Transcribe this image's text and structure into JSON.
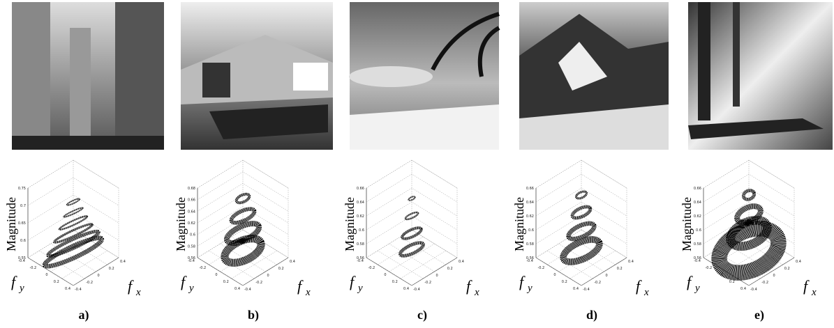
{
  "panels": [
    {
      "label": "a)",
      "z_label": "Magnitude",
      "x_label": "f",
      "x_sub": "x",
      "y_label": "f",
      "y_sub": "y",
      "z_ticks": [
        0.55,
        0.6,
        0.65,
        0.7,
        0.75
      ],
      "x_ticks": [
        -0.4,
        -0.2,
        0,
        0.2,
        0.4
      ],
      "y_ticks": [
        -0.4,
        -0.2,
        0,
        0.2,
        0.4
      ]
    },
    {
      "label": "b)",
      "z_label": "Magnitude",
      "x_label": "f",
      "x_sub": "x",
      "y_label": "f",
      "y_sub": "y",
      "z_ticks": [
        0.56,
        0.58,
        0.6,
        0.62,
        0.64,
        0.66,
        0.68
      ],
      "x_ticks": [
        -0.4,
        -0.2,
        0,
        0.2,
        0.4
      ],
      "y_ticks": [
        -0.4,
        -0.2,
        0,
        0.2,
        0.4
      ]
    },
    {
      "label": "c)",
      "z_label": "Magnitude",
      "x_label": "f",
      "x_sub": "x",
      "y_label": "f",
      "y_sub": "y",
      "z_ticks": [
        0.56,
        0.58,
        0.6,
        0.62,
        0.64,
        0.66
      ],
      "x_ticks": [
        -0.4,
        -0.2,
        0,
        0.2,
        0.4
      ],
      "y_ticks": [
        -0.4,
        -0.2,
        0,
        0.2,
        0.4
      ]
    },
    {
      "label": "d)",
      "z_label": "Magnitude",
      "x_label": "f",
      "x_sub": "x",
      "y_label": "f",
      "y_sub": "y",
      "z_ticks": [
        0.56,
        0.58,
        0.6,
        0.62,
        0.64,
        0.66
      ],
      "x_ticks": [
        -0.4,
        -0.2,
        0,
        0.2,
        0.4
      ],
      "y_ticks": [
        -0.4,
        -0.2,
        0,
        0.2,
        0.4
      ]
    },
    {
      "label": "e)",
      "z_label": "Magnitude",
      "x_label": "f",
      "x_sub": "x",
      "y_label": "f",
      "y_sub": "y",
      "z_ticks": [
        0.56,
        0.58,
        0.6,
        0.62,
        0.64,
        0.66
      ],
      "x_ticks": [
        -0.4,
        -0.2,
        0,
        0.2,
        0.4
      ],
      "y_ticks": [
        -0.4,
        -0.2,
        0,
        0.2,
        0.4
      ]
    }
  ]
}
